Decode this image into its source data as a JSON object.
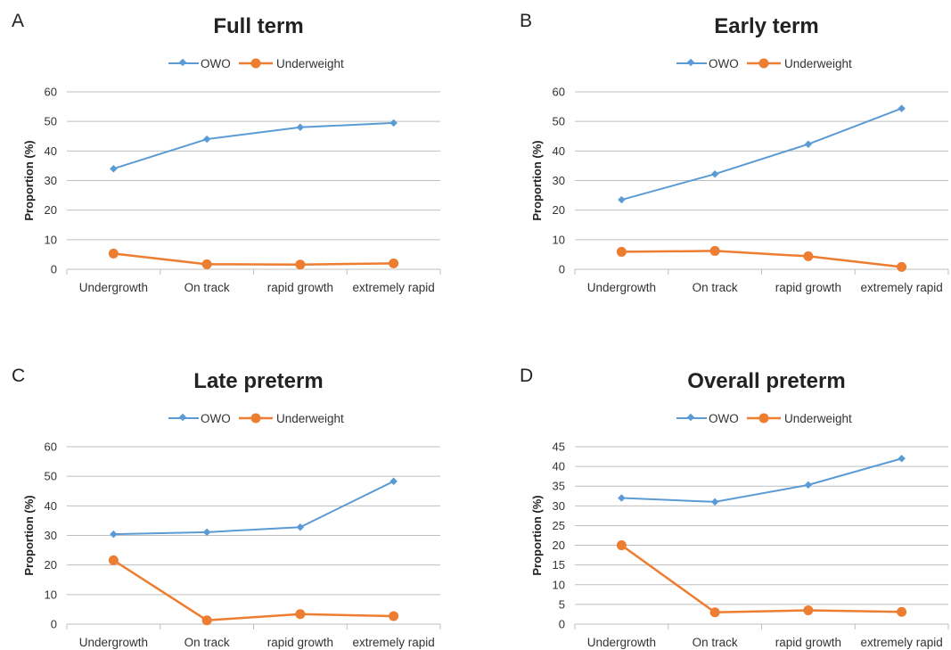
{
  "colors": {
    "owo": "#5B9BD5",
    "underweight": "#ED7D31",
    "grid": "#BFBFBF",
    "axis": "#BFBFBF"
  },
  "legend": {
    "owo": "OWO",
    "underweight": "Underweight"
  },
  "chart_data": [
    {
      "panel": "A",
      "type": "line",
      "title": "Full term",
      "ylabel": "Proportion (%)",
      "ylim": [
        0,
        60
      ],
      "yticks": [
        0,
        10,
        20,
        30,
        40,
        50,
        60
      ],
      "categories": [
        "Undergrowth",
        "On track",
        "rapid growth",
        "extremely rapid"
      ],
      "series": [
        {
          "name": "OWO",
          "values": [
            34,
            44,
            48,
            49.5
          ]
        },
        {
          "name": "Underweight",
          "values": [
            5.3,
            1.7,
            1.6,
            2.0
          ]
        }
      ],
      "legend_position": "top-center",
      "grid": true
    },
    {
      "panel": "B",
      "type": "line",
      "title": "Early term",
      "ylabel": "Proportion (%)",
      "ylim": [
        0,
        60
      ],
      "yticks": [
        0,
        10,
        20,
        30,
        40,
        50,
        60
      ],
      "categories": [
        "Undergrowth",
        "On track",
        "rapid growth",
        "extremely rapid"
      ],
      "series": [
        {
          "name": "OWO",
          "values": [
            23.5,
            32.2,
            42.3,
            54.4
          ]
        },
        {
          "name": "Underweight",
          "values": [
            5.9,
            6.2,
            4.4,
            0.8
          ]
        }
      ],
      "legend_position": "top-center",
      "grid": true
    },
    {
      "panel": "C",
      "type": "line",
      "title": "Late preterm",
      "ylabel": "Proportion (%)",
      "ylim": [
        0,
        60
      ],
      "yticks": [
        0,
        10,
        20,
        30,
        40,
        50,
        60
      ],
      "categories": [
        "Undergrowth",
        "On track",
        "rapid growth",
        "extremely rapid"
      ],
      "series": [
        {
          "name": "OWO",
          "values": [
            30.4,
            31.1,
            32.8,
            48.3
          ]
        },
        {
          "name": "Underweight",
          "values": [
            21.6,
            1.3,
            3.4,
            2.7
          ]
        }
      ],
      "legend_position": "top-center",
      "grid": true
    },
    {
      "panel": "D",
      "type": "line",
      "title": "Overall preterm",
      "ylabel": "Proportion (%)",
      "ylim": [
        0,
        45
      ],
      "yticks": [
        0,
        5,
        10,
        15,
        20,
        25,
        30,
        35,
        40,
        45
      ],
      "categories": [
        "Undergrowth",
        "On track",
        "rapid growth",
        "extremely rapid"
      ],
      "series": [
        {
          "name": "OWO",
          "values": [
            32.0,
            31.0,
            35.3,
            42.0
          ]
        },
        {
          "name": "Underweight",
          "values": [
            20.0,
            3.0,
            3.5,
            3.1
          ]
        }
      ],
      "legend_position": "top-center",
      "grid": true
    }
  ]
}
